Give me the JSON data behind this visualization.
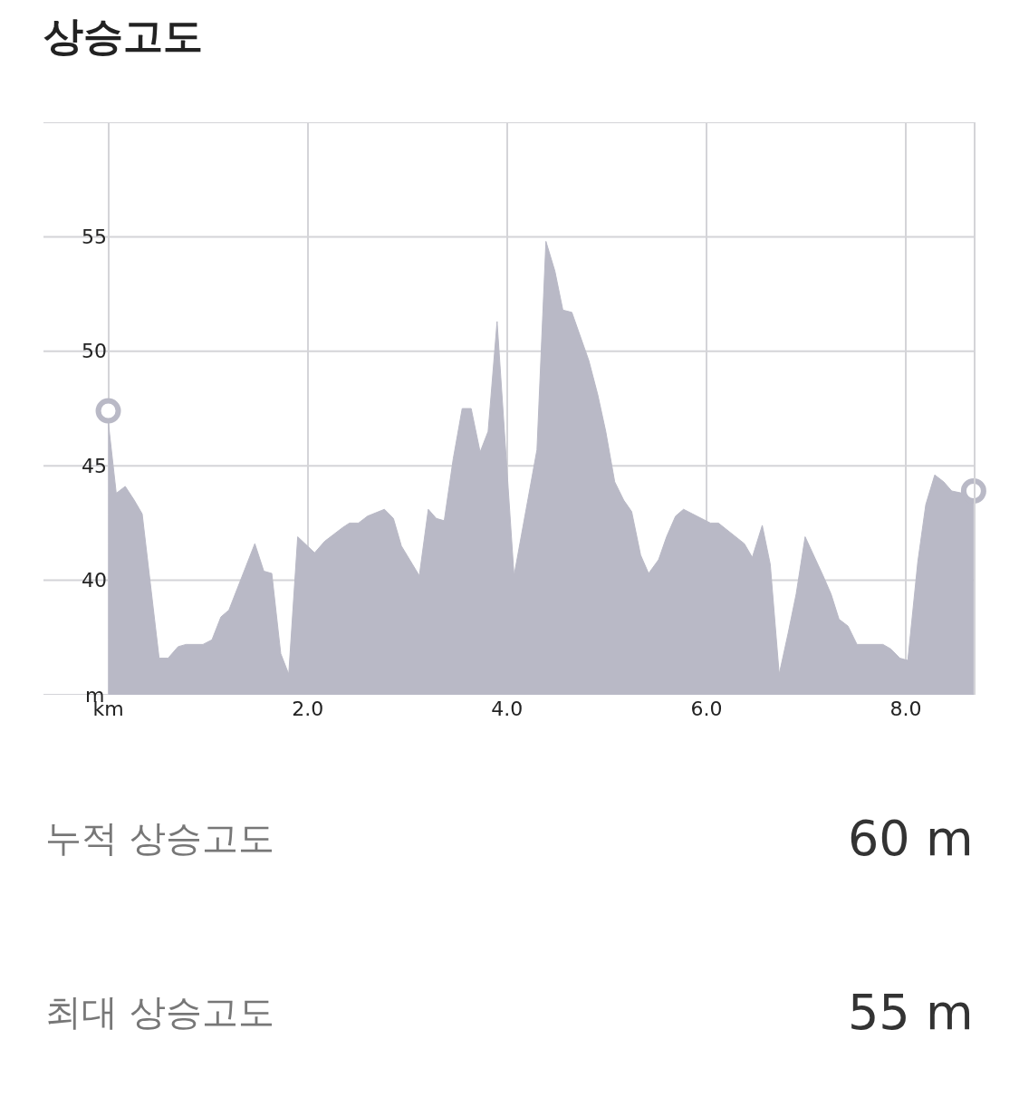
{
  "chart_data": {
    "type": "area",
    "title": "상승고도",
    "x": [
      0,
      0.08,
      0.17,
      0.26,
      0.34,
      0.51,
      0.6,
      0.7,
      0.78,
      0.95,
      1.04,
      1.13,
      1.21,
      1.47,
      1.56,
      1.64,
      1.73,
      1.81,
      1.9,
      2.07,
      2.17,
      2.26,
      2.35,
      2.42,
      2.51,
      2.6,
      2.77,
      2.86,
      2.94,
      3.12,
      3.21,
      3.29,
      3.37,
      3.46,
      3.55,
      3.64,
      3.73,
      3.81,
      3.9,
      4.07,
      4.3,
      4.39,
      4.48,
      4.56,
      4.65,
      4.82,
      4.91,
      4.99,
      5.08,
      5.17,
      5.25,
      5.34,
      5.42,
      5.52,
      5.6,
      5.69,
      5.77,
      5.86,
      6.04,
      6.12,
      6.38,
      6.46,
      6.56,
      6.64,
      6.73,
      6.82,
      6.9,
      6.99,
      7.17,
      7.25,
      7.33,
      7.42,
      7.51,
      7.77,
      7.85,
      7.94,
      8.02,
      8.12,
      8.2,
      8.29,
      8.38,
      8.46,
      8.68
    ],
    "series": [
      {
        "color": "#b9b9c6",
        "values": [
          46.9,
          43.8,
          44.1,
          43.5,
          42.9,
          36.6,
          36.6,
          37.1,
          37.2,
          37.2,
          37.4,
          38.4,
          38.7,
          41.6,
          40.4,
          40.3,
          36.8,
          35.9,
          41.9,
          41.2,
          41.7,
          42.0,
          42.3,
          42.5,
          42.5,
          42.8,
          43.1,
          42.7,
          41.5,
          40.2,
          43.1,
          42.7,
          42.6,
          45.3,
          47.5,
          47.5,
          45.6,
          46.5,
          51.3,
          40.2,
          45.7,
          54.8,
          53.5,
          51.8,
          51.7,
          49.6,
          48.1,
          46.5,
          44.3,
          43.5,
          43.0,
          41.1,
          40.3,
          40.9,
          41.9,
          42.8,
          43.1,
          42.9,
          42.5,
          42.5,
          41.6,
          41.0,
          42.4,
          40.7,
          35.9,
          37.7,
          39.4,
          41.9,
          40.2,
          39.4,
          38.3,
          38.0,
          37.2,
          37.2,
          37.0,
          36.6,
          36.5,
          40.8,
          43.3,
          44.6,
          44.3,
          43.9,
          43.7
        ]
      },
      {
        "type": "scatter",
        "marker": "circle",
        "color": "#b9b9c6",
        "x": [
          0,
          8.68
        ],
        "values": [
          47.4,
          43.9
        ]
      }
    ],
    "xlim": [
      -0.65,
      8.69
    ],
    "xticks": [
      {
        "value": 0,
        "label": "km"
      },
      {
        "value": 2,
        "label": "2.0"
      },
      {
        "value": 4,
        "label": "4.0"
      },
      {
        "value": 6,
        "label": "6.0"
      },
      {
        "value": 8,
        "label": "8.0"
      }
    ],
    "ylim": [
      35,
      60
    ],
    "yticks": [
      {
        "value": 35,
        "label": "m"
      },
      40,
      45,
      50,
      55,
      {
        "value": 60,
        "label": null
      }
    ],
    "grid": true,
    "legend": false,
    "annotations": [
      "누적 상승고도",
      "60 m",
      "최대 상승고도",
      "55 m"
    ]
  }
}
